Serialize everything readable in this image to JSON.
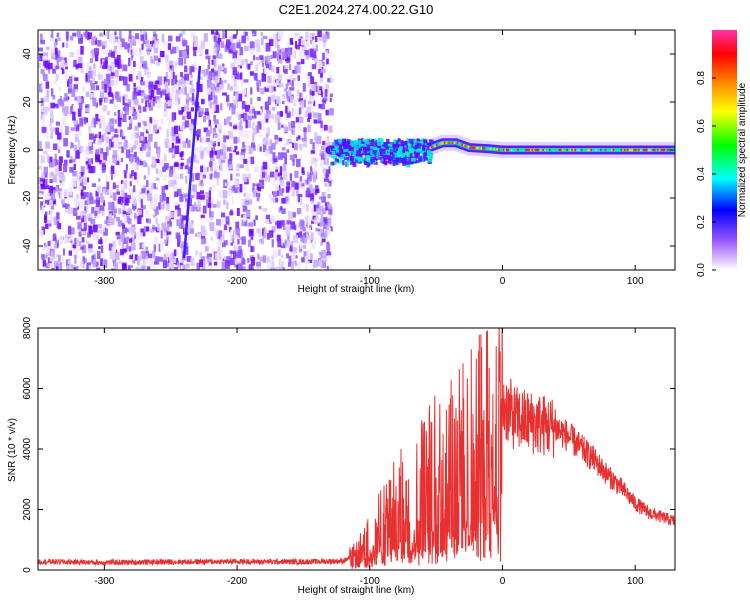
{
  "title": "C2E1.2024.274.00.22.G10",
  "chart_data": [
    {
      "type": "heatmap",
      "xlabel": "Height of straight line (km)",
      "ylabel": "Frequency (Hz)",
      "xlim": [
        -350,
        130
      ],
      "ylim": [
        -50,
        50
      ],
      "xticks": [
        -300,
        -200,
        -100,
        0,
        100
      ],
      "yticks": [
        -40,
        -20,
        0,
        20,
        40
      ],
      "colorbar": {
        "label": "Normalized spectral amplitude",
        "range": [
          0,
          1
        ],
        "ticks": [
          "0.0",
          "0.2",
          "0.4",
          "0.6",
          "0.8"
        ],
        "colors": [
          "#ffffff",
          "#9b59ff",
          "#0000ff",
          "#00ffff",
          "#00ff00",
          "#ffff00",
          "#ff8800",
          "#ff0000",
          "#ff33aa"
        ]
      },
      "noise_region_x": [
        -350,
        -130
      ],
      "signal_trace": {
        "x": [
          -130,
          -110,
          -90,
          -70,
          -55,
          -45,
          -35,
          -25,
          -10,
          0,
          20,
          60,
          100,
          130
        ],
        "freq": [
          0,
          0,
          0,
          0,
          1,
          3,
          3,
          1,
          0.5,
          0,
          0,
          0,
          0,
          0
        ]
      }
    },
    {
      "type": "line",
      "xlabel": "Height of straight line (km)",
      "ylabel": "SNR (10 * v/v)",
      "xlim": [
        -350,
        130
      ],
      "ylim": [
        0,
        8000
      ],
      "xticks": [
        -300,
        -200,
        -100,
        0,
        100
      ],
      "yticks": [
        0,
        2000,
        4000,
        6000,
        8000
      ],
      "color": "#e83030",
      "x": [
        -350,
        -300,
        -250,
        -200,
        -150,
        -120,
        -110,
        -100,
        -90,
        -80,
        -70,
        -60,
        -50,
        -40,
        -30,
        -20,
        -10,
        0,
        10,
        20,
        30,
        40,
        50,
        60,
        70,
        80,
        90,
        100,
        110,
        120,
        130
      ],
      "y": [
        280,
        250,
        270,
        280,
        270,
        300,
        500,
        1000,
        1500,
        2000,
        2400,
        2800,
        3100,
        3400,
        3700,
        4000,
        4500,
        5500,
        5000,
        4900,
        4800,
        4700,
        4400,
        4000,
        3600,
        3100,
        2700,
        2200,
        1900,
        1750,
        1600
      ]
    }
  ]
}
